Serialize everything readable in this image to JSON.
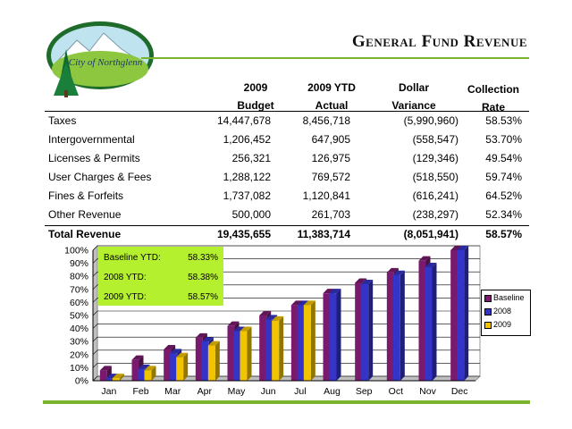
{
  "header": {
    "logo_text": "City of Northglenn",
    "title": "General Fund Revenue"
  },
  "table": {
    "columns": [
      {
        "line1": "2009",
        "line2": "Budget"
      },
      {
        "line1": "2009 YTD",
        "line2": "Actual"
      },
      {
        "line1": "Dollar",
        "line2": "Variance"
      },
      {
        "line1": "Collection",
        "line2": "Rate"
      }
    ],
    "rows": [
      {
        "label": "Taxes",
        "budget": "14,447,678",
        "actual": "8,456,718",
        "variance": "(5,990,960)",
        "rate": "58.53%"
      },
      {
        "label": "Intergovernmental",
        "budget": "1,206,452",
        "actual": "647,905",
        "variance": "(558,547)",
        "rate": "53.70%"
      },
      {
        "label": "Licenses & Permits",
        "budget": "256,321",
        "actual": "126,975",
        "variance": "(129,346)",
        "rate": "49.54%"
      },
      {
        "label": "User Charges & Fees",
        "budget": "1,288,122",
        "actual": "769,572",
        "variance": "(518,550)",
        "rate": "59.74%"
      },
      {
        "label": "Fines & Forfeits",
        "budget": "1,737,082",
        "actual": "1,120,841",
        "variance": "(616,241)",
        "rate": "64.52%"
      },
      {
        "label": "Other Revenue",
        "budget": "500,000",
        "actual": "261,703",
        "variance": "(238,297)",
        "rate": "52.34%"
      }
    ],
    "total": {
      "label": "Total Revenue",
      "budget": "19,435,655",
      "actual": "11,383,714",
      "variance": "(8,051,941)",
      "rate": "58.57%"
    }
  },
  "ytd_box": [
    {
      "label": "Baseline YTD:",
      "value": "58.33%"
    },
    {
      "label": "2008 YTD:",
      "value": "58.38%"
    },
    {
      "label": "2009 YTD:",
      "value": "58.57%"
    }
  ],
  "colors": {
    "baseline": "#7a1a6e",
    "y2008": "#3434c8",
    "y2009": "#f2c400",
    "accent_green": "#7ab32e",
    "ytd_box": "#b5f02e"
  },
  "chart_data": {
    "type": "bar",
    "bar_style": "3d-clustered",
    "categories": [
      "Jan",
      "Feb",
      "Mar",
      "Apr",
      "May",
      "Jun",
      "Jul",
      "Aug",
      "Sep",
      "Oct",
      "Nov",
      "Dec"
    ],
    "series": [
      {
        "name": "Baseline",
        "values": [
          8,
          16,
          24,
          33,
          42,
          50,
          58,
          67,
          75,
          83,
          92,
          100
        ]
      },
      {
        "name": "2008",
        "values": [
          2,
          9,
          21,
          30,
          38,
          47,
          58,
          67,
          74,
          81,
          87,
          100
        ]
      },
      {
        "name": "2009",
        "values": [
          2,
          8,
          18,
          27,
          38,
          46,
          58,
          null,
          null,
          null,
          null,
          null
        ]
      }
    ],
    "ylim": [
      0,
      100
    ],
    "yticks": [
      "0%",
      "10%",
      "20%",
      "30%",
      "40%",
      "50%",
      "60%",
      "70%",
      "80%",
      "90%",
      "100%"
    ],
    "title": "",
    "xlabel": "",
    "ylabel": "",
    "grid": true,
    "legend_position": "right"
  }
}
